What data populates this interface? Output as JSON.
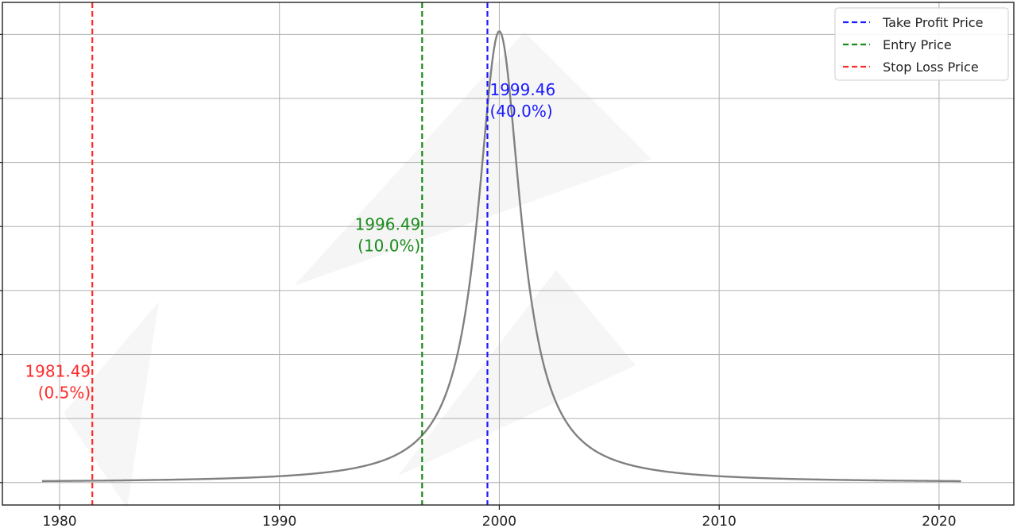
{
  "chart_data": {
    "type": "line",
    "title": "",
    "xlabel": "",
    "ylabel": "",
    "xlim": [
      1977.4,
      2023.4
    ],
    "ylim": [
      -0.035,
      0.75
    ],
    "x_ticks": [
      1980,
      1990,
      2000,
      2010,
      2020
    ],
    "x_tick_labels": [
      "1980",
      "1990",
      "2000",
      "2010",
      "2020"
    ],
    "y_ticks": [
      0.0,
      0.1,
      0.2,
      0.3,
      0.4,
      0.5,
      0.6,
      0.7
    ],
    "y_tick_labels_visible": false,
    "grid": true,
    "legend_position": "top-right",
    "curve": {
      "name": "",
      "color": "#808080",
      "distribution": "cauchy",
      "location": 2000.0,
      "scale": 1.2,
      "peak": 0.705,
      "x_range": [
        1979.2,
        2021.0
      ]
    },
    "vlines": [
      {
        "name": "Take Profit Price",
        "value": 1999.46,
        "label": "1999.46",
        "pct": "(40.0%)",
        "color": "#1a1aff",
        "label_side": "right",
        "label_y": 0.605
      },
      {
        "name": "Entry Price",
        "value": 1996.49,
        "label": "1996.49",
        "pct": "(10.0%)",
        "color": "#1a8c1a",
        "label_side": "left",
        "label_y": 0.395
      },
      {
        "name": "Stop Loss Price",
        "value": 1981.49,
        "label": "1981.49",
        "pct": "(0.5%)",
        "color": "#ff2a2a",
        "label_side": "left",
        "label_y": 0.165
      }
    ]
  }
}
